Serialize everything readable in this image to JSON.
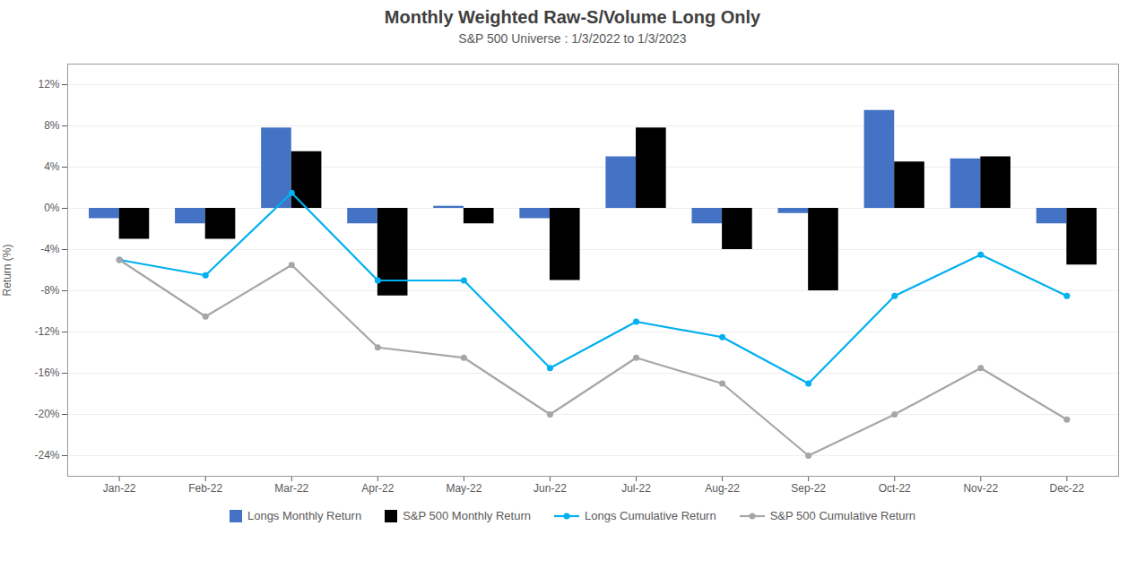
{
  "chart_data": {
    "type": "bar",
    "title": "Monthly Weighted Raw-S/Volume Long Only",
    "subtitle": "S&P 500 Universe : 1/3/2022 to 1/3/2023",
    "categories": [
      "Jan-22",
      "Feb-22",
      "Mar-22",
      "Apr-22",
      "May-22",
      "Jun-22",
      "Jul-22",
      "Aug-22",
      "Sep-22",
      "Oct-22",
      "Nov-22",
      "Dec-22"
    ],
    "series": [
      {
        "name": "Longs Monthly Return",
        "type": "bar",
        "color": "#4472C4",
        "values": [
          -1.0,
          -1.5,
          7.8,
          -1.5,
          0.2,
          -1.0,
          5.0,
          -1.5,
          -0.5,
          9.5,
          4.8,
          -1.5
        ]
      },
      {
        "name": "S&P 500 Monthly Return",
        "type": "bar",
        "color": "#000000",
        "values": [
          -3.0,
          -3.0,
          5.5,
          -8.5,
          -1.5,
          -7.0,
          7.8,
          -4.0,
          -8.0,
          4.5,
          5.0,
          -5.5
        ]
      },
      {
        "name": "Longs Cumulative Return",
        "type": "line",
        "marker": "circle",
        "color": "#00B0F0",
        "values": [
          -5.0,
          -6.5,
          1.5,
          -7.0,
          -7.0,
          -15.5,
          -11.0,
          -12.5,
          -17.0,
          -8.5,
          -4.5,
          -8.5
        ]
      },
      {
        "name": "S&P 500 Cumulative Return",
        "type": "line",
        "marker": "circle",
        "color": "#A6A6A6",
        "values": [
          -5.0,
          -10.5,
          -5.5,
          -13.5,
          -14.5,
          -20.0,
          -14.5,
          -17.0,
          -24.0,
          -20.0,
          -15.5,
          -20.5
        ]
      }
    ],
    "ylabel": "Return (%)",
    "ylim": [
      -26,
      14
    ],
    "yticks": [
      {
        "value": -24,
        "label": "-24%"
      },
      {
        "value": -20,
        "label": "-20%"
      },
      {
        "value": -16,
        "label": "-16%"
      },
      {
        "value": -12,
        "label": "-12%"
      },
      {
        "value": -8,
        "label": "-8%"
      },
      {
        "value": -4,
        "label": "-4%"
      },
      {
        "value": 0,
        "label": "0%"
      },
      {
        "value": 4,
        "label": "4%"
      },
      {
        "value": 8,
        "label": "8%"
      },
      {
        "value": 12,
        "label": "12%"
      }
    ],
    "grid": true,
    "legend": "bottom"
  }
}
